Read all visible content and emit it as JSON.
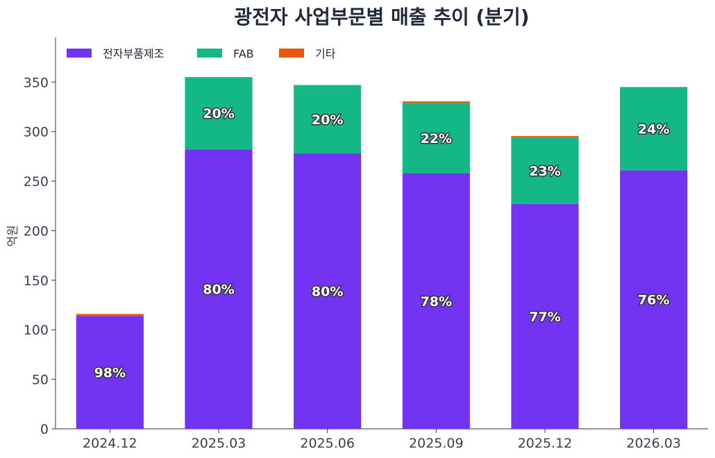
{
  "chart_data": {
    "type": "bar",
    "stacked": true,
    "title": "광전자 사업부문별 매출 추이 (분기)",
    "xlabel": "",
    "ylabel": "억원",
    "ylim": [
      0,
      395
    ],
    "yticks": [
      0,
      50,
      100,
      150,
      200,
      250,
      300,
      350
    ],
    "categories": [
      "2024.12",
      "2025.03",
      "2025.06",
      "2025.09",
      "2025.12",
      "2026.03"
    ],
    "series": [
      {
        "name": "전자부품제조",
        "color": "#7233f2",
        "values": [
          114,
          282,
          278,
          258,
          227,
          261
        ]
      },
      {
        "name": "FAB",
        "color": "#13b886",
        "values": [
          0,
          73,
          69,
          71,
          67,
          84
        ]
      },
      {
        "name": "기타",
        "color": "#e8590c",
        "values": [
          2,
          0,
          0,
          1.5,
          1.5,
          0
        ]
      }
    ],
    "bar_labels": [
      {
        "category": "2024.12",
        "series": "전자부품제조",
        "text": "98%"
      },
      {
        "category": "2025.03",
        "series": "전자부품제조",
        "text": "80%"
      },
      {
        "category": "2025.03",
        "series": "FAB",
        "text": "20%"
      },
      {
        "category": "2025.06",
        "series": "전자부품제조",
        "text": "80%"
      },
      {
        "category": "2025.06",
        "series": "FAB",
        "text": "20%"
      },
      {
        "category": "2025.09",
        "series": "전자부품제조",
        "text": "78%"
      },
      {
        "category": "2025.09",
        "series": "FAB",
        "text": "22%"
      },
      {
        "category": "2025.12",
        "series": "전자부품제조",
        "text": "77%"
      },
      {
        "category": "2025.12",
        "series": "FAB",
        "text": "23%"
      },
      {
        "category": "2026.03",
        "series": "전자부품제조",
        "text": "76%"
      },
      {
        "category": "2026.03",
        "series": "FAB",
        "text": "24%"
      }
    ],
    "legend": {
      "placement": "top-left",
      "entries": [
        "전자부품제조",
        "FAB",
        "기타"
      ]
    },
    "grid": false
  }
}
